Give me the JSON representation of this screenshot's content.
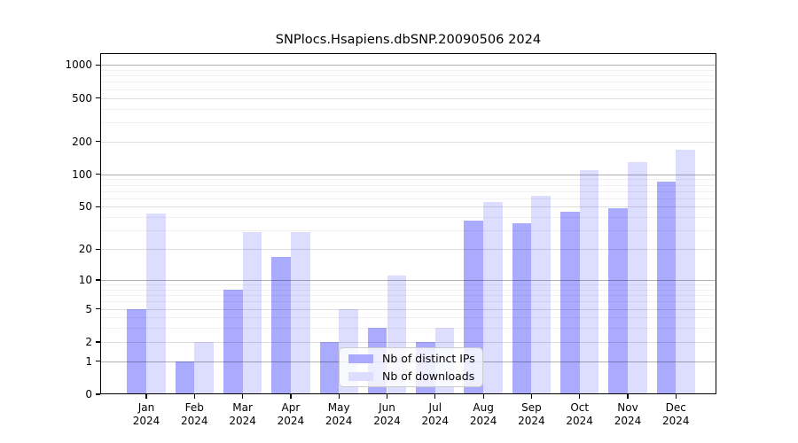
{
  "title": "SNPlocs.Hsapiens.dbSNP.20090506 2024",
  "chart_data": {
    "type": "bar",
    "title": "SNPlocs.Hsapiens.dbSNP.20090506 2024",
    "categories": [
      "Jan\n2024",
      "Feb\n2024",
      "Mar\n2024",
      "Apr\n2024",
      "May\n2024",
      "Jun\n2024",
      "Jul\n2024",
      "Aug\n2024",
      "Sep\n2024",
      "Oct\n2024",
      "Nov\n2024",
      "Dec\n2024"
    ],
    "series": [
      {
        "name": "Nb of distinct IPs",
        "color": "#aaaaff",
        "values": [
          5,
          1,
          8,
          17,
          2,
          3,
          2,
          37,
          35,
          45,
          49,
          86
        ]
      },
      {
        "name": "Nb of downloads",
        "color": "#ddddff",
        "values": [
          43,
          2,
          29,
          29,
          5,
          11,
          3,
          55,
          63,
          109,
          130,
          169
        ]
      }
    ],
    "yticks": [
      0,
      1,
      2,
      5,
      10,
      20,
      50,
      100,
      200,
      500,
      1000
    ],
    "minor_yticks": [
      3,
      4,
      6,
      7,
      8,
      9,
      30,
      40,
      60,
      70,
      80,
      90,
      300,
      400,
      600,
      700,
      800,
      900
    ],
    "scale": "log1p",
    "ylim": [
      0,
      1280
    ],
    "xlabel": "",
    "ylabel": "",
    "grid": true,
    "legend_position": "lower center"
  }
}
